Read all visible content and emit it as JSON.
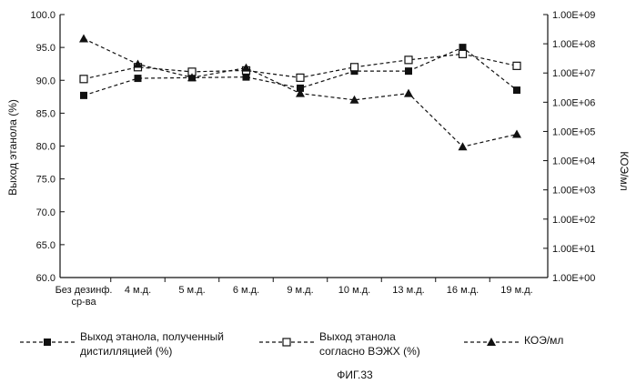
{
  "chart_data": {
    "type": "line",
    "categories": [
      "Без дезинф. ср-ва",
      "4 м.д.",
      "5 м.д.",
      "6 м.д.",
      "9 м.д.",
      "10 м.д.",
      "13 м.д.",
      "16 м.д.",
      "19 м.д."
    ],
    "category_lines": [
      [
        "Без дезинф.",
        "ср-ва"
      ],
      [
        "4 м.д."
      ],
      [
        "5 м.д."
      ],
      [
        "6 м.д."
      ],
      [
        "9 м.д."
      ],
      [
        "10 м.д."
      ],
      [
        "13 м.д."
      ],
      [
        "16 м.д."
      ],
      [
        "19 м.д."
      ]
    ],
    "ylabel": "Выход этанола (%)",
    "y2label": "КОЭ/мл",
    "ylim": [
      60,
      100
    ],
    "y_ticks": [
      "60.0",
      "65.0",
      "70.0",
      "75.0",
      "80.0",
      "85.0",
      "90.0",
      "95.0",
      "100.0"
    ],
    "y2_log_range": [
      0,
      9
    ],
    "y2_ticks": [
      "1.00E+00",
      "1.00E+01",
      "1.00E+02",
      "1.00E+03",
      "1.00E+04",
      "1.00E+05",
      "1.00E+06",
      "1.00E+07",
      "1.00E+08",
      "1.00E+09"
    ],
    "series": [
      {
        "name": "Выход этанола, полученный дистилляцией (%)",
        "name_lines": [
          "Выход этанола, полученный",
          "дистилляцией (%)"
        ],
        "axis": "left",
        "marker": "filled-square",
        "values": [
          87.7,
          90.3,
          90.4,
          90.5,
          88.8,
          91.4,
          91.4,
          95.0,
          88.5
        ]
      },
      {
        "name": "Выход этанола согласно ВЭЖХ (%)",
        "name_lines": [
          "Выход этанола",
          "согласно ВЭЖХ (%)"
        ],
        "axis": "left",
        "marker": "open-square",
        "values": [
          90.2,
          92.0,
          91.3,
          91.5,
          90.4,
          92.0,
          93.1,
          94.0,
          92.2
        ]
      },
      {
        "name": "КОЭ/мл",
        "name_lines": [
          "КОЭ/мл"
        ],
        "axis": "right",
        "marker": "filled-triangle",
        "values": [
          150000000,
          20000000,
          7000000,
          15000000,
          2000000,
          1200000,
          2000000,
          30000,
          80000
        ]
      }
    ],
    "grid": false,
    "legend_position": "bottom"
  },
  "caption": "ФИГ.33"
}
